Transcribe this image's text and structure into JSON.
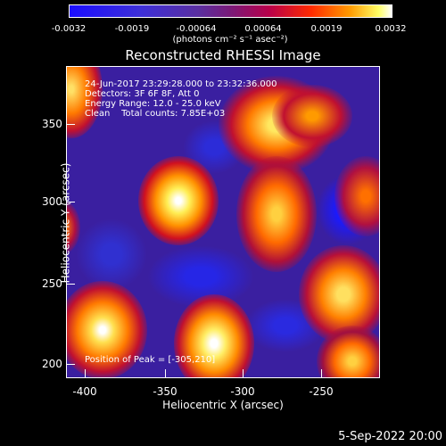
{
  "colorbar": {
    "ticks": [
      "-0.0032",
      "-0.0019",
      "-0.00064",
      "0.00064",
      "0.0019",
      "0.0032"
    ],
    "units": "(photons cm⁻² s⁻¹ asec⁻²)"
  },
  "title": "Reconstructed RHESSI Image",
  "info": {
    "time": "24-Jun-2017 23:29:28.000 to 23:32:36.000",
    "detectors": "Detectors: 3F 6F 8F, Att 0",
    "energy": "Energy Range: 12.0 - 25.0 keV",
    "clean": "Clean    Total counts: 7.85E+03",
    "peak": "Position of Peak = [-305,210]"
  },
  "axes": {
    "xlabel": "Heliocentric X (arcsec)",
    "ylabel": "Heliocentric Y (arcsec)",
    "xticks": [
      "-400",
      "-350",
      "-300",
      "-250"
    ],
    "yticks": [
      "350",
      "300",
      "250",
      "200"
    ]
  },
  "footer": {
    "date": "5-Sep-2022 20:00"
  }
}
